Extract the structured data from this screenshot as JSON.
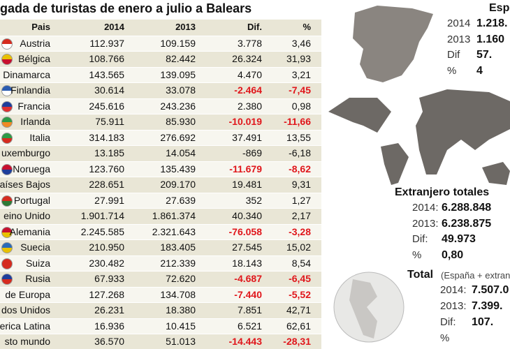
{
  "header": {
    "title": "gada de turistas de enero a julio a Balears"
  },
  "table": {
    "columns": [
      "Pais",
      "2014",
      "2013",
      "Dif.",
      "%"
    ],
    "rows": [
      {
        "cells": [
          "Austria",
          "112.937",
          "109.159",
          "3.778",
          "3,46"
        ],
        "flag": [
          "#d52b1e",
          "#ffffff"
        ]
      },
      {
        "cells": [
          "Bélgica",
          "108.766",
          "82.442",
          "26.324",
          "31,93"
        ],
        "flag": [
          "#e8c100",
          "#c8102e"
        ]
      },
      {
        "cells": [
          "Dinamarca",
          "143.565",
          "139.095",
          "4.470",
          "3,21"
        ]
      },
      {
        "cells": [
          "Finlandia",
          "30.614",
          "33.078",
          "-2.464",
          "-7,45"
        ],
        "negative": true,
        "flag": [
          "#2a5bb0",
          "#ffffff"
        ]
      },
      {
        "cells": [
          "Francia",
          "245.616",
          "243.236",
          "2.380",
          "0,98"
        ],
        "flag": [
          "#1f3e9b",
          "#e03030"
        ]
      },
      {
        "cells": [
          "Irlanda",
          "75.911",
          "85.930",
          "-10.019",
          "-11,66"
        ],
        "negative": true,
        "flag": [
          "#2e9a46",
          "#f08a24"
        ]
      },
      {
        "cells": [
          "Italia",
          "314.183",
          "276.692",
          "37.491",
          "13,55"
        ],
        "flag": [
          "#2e9a46",
          "#d52b1e"
        ]
      },
      {
        "cells": [
          "uxemburgo",
          "13.185",
          "14.054",
          "-869",
          "-6,18"
        ]
      },
      {
        "cells": [
          "Noruega",
          "123.760",
          "135.439",
          "-11.679",
          "-8,62"
        ],
        "negative": true,
        "flag": [
          "#c8102e",
          "#1f3e9b"
        ]
      },
      {
        "cells": [
          "aíses Bajos",
          "228.651",
          "209.170",
          "19.481",
          "9,31"
        ]
      },
      {
        "cells": [
          "Portugal",
          "27.991",
          "27.639",
          "352",
          "1,27"
        ],
        "flag": [
          "#d52b1e",
          "#2e7a36"
        ]
      },
      {
        "cells": [
          "eino Unido",
          "1.901.714",
          "1.861.374",
          "40.340",
          "2,17"
        ]
      },
      {
        "cells": [
          "Alemania",
          "2.245.585",
          "2.321.643",
          "-76.058",
          "-3,28"
        ],
        "negative": true,
        "flag": [
          "#c8102e",
          "#e8c100"
        ]
      },
      {
        "cells": [
          "Suecia",
          "210.950",
          "183.405",
          "27.545",
          "15,02"
        ],
        "flag": [
          "#2a6bb8",
          "#e8c100"
        ]
      },
      {
        "cells": [
          "Suiza",
          "230.482",
          "212.339",
          "18.143",
          "8,54"
        ],
        "flag": [
          "#d52b1e",
          "#d52b1e"
        ]
      },
      {
        "cells": [
          "Rusia",
          "67.933",
          "72.620",
          "-4.687",
          "-6,45"
        ],
        "negative": true,
        "flag": [
          "#1f3e9b",
          "#d52b1e"
        ]
      },
      {
        "cells": [
          " de Europa",
          "127.268",
          "134.708",
          "-7.440",
          "-5,52"
        ],
        "negative": true
      },
      {
        "cells": [
          "dos Unidos",
          "26.231",
          "18.380",
          "7.851",
          "42,71"
        ]
      },
      {
        "cells": [
          "erica Latina",
          "16.936",
          "10.415",
          "6.521",
          "62,61"
        ]
      },
      {
        "cells": [
          "sto mundo",
          "36.570",
          "51.013",
          "-14.443",
          "-28,31"
        ],
        "negative": true
      }
    ]
  },
  "spain": {
    "title": "Esp",
    "rows": [
      [
        "2014",
        "1.218."
      ],
      [
        "2013",
        "1.160"
      ],
      [
        "Dif",
        "57."
      ],
      [
        "%",
        "4"
      ]
    ]
  },
  "foreign": {
    "title": "Extranjero totales",
    "rows": [
      [
        "2014:",
        "6.288.848"
      ],
      [
        "2013:",
        "6.238.875"
      ],
      [
        "Dif:",
        "49.973"
      ],
      [
        "%",
        "0,80"
      ]
    ]
  },
  "total": {
    "title": "Total",
    "subtitle": "(España + extran",
    "rows": [
      [
        "2014:",
        "7.507.0"
      ],
      [
        "2013:",
        "7.399."
      ],
      [
        "Dif:",
        "107."
      ],
      [
        "%",
        ""
      ]
    ]
  }
}
